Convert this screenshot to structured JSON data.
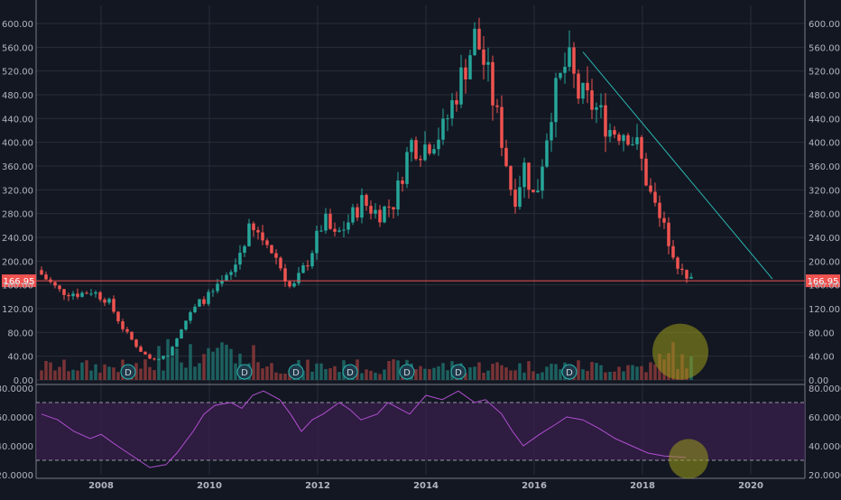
{
  "colors": {
    "background": "#131722",
    "grid": "#2a2e39",
    "up": "#26a69a",
    "down": "#ef5350",
    "up_volume": "#1f6f6a",
    "down_volume": "#8c3a3a",
    "axis_text": "#b2b5be",
    "rsi_line": "#b04fd0",
    "rsi_band": "#3a1f4f",
    "trendline": "#2ab6b0",
    "highlight_circle": "#9a9a1a",
    "price_label_bg": "#ef5350"
  },
  "chart_data": [
    {
      "type": "candlestick",
      "title": "",
      "price_axis": {
        "ticks": [
          "600.00",
          "560.00",
          "520.00",
          "480.00",
          "440.00",
          "400.00",
          "360.00",
          "320.00",
          "280.00",
          "240.00",
          "200.00",
          "160.00",
          "120.00",
          "80.00",
          "40.00",
          "0.00"
        ],
        "ylim": [
          0,
          600
        ]
      },
      "time_axis": {
        "ticks": [
          "2008",
          "2010",
          "2012",
          "2014",
          "2016",
          "2018",
          "2020"
        ],
        "xlim": [
          2006.8,
          2021.0
        ]
      },
      "last_price_label": "166.95",
      "last_price": 166.95,
      "horizontal_line": 166.95,
      "trendline": {
        "from": [
          2016.9,
          552
        ],
        "to": [
          2020.4,
          170
        ]
      },
      "dividend_markers": {
        "label": "D",
        "dates": [
          2008.5,
          2010.65,
          2011.6,
          2012.6,
          2013.65,
          2014.6,
          2016.65
        ]
      },
      "highlight": {
        "date": 2018.7,
        "value": 40,
        "label": ""
      },
      "monthly_closes": [
        {
          "date": 2006.9,
          "close": 185
        },
        {
          "date": 2007.3,
          "close": 150
        },
        {
          "date": 2007.7,
          "close": 145
        },
        {
          "date": 2007.9,
          "close": 150
        },
        {
          "date": 2008.2,
          "close": 135
        },
        {
          "date": 2008.5,
          "close": 85
        },
        {
          "date": 2008.8,
          "close": 50
        },
        {
          "date": 2009.0,
          "close": 35
        },
        {
          "date": 2009.3,
          "close": 40
        },
        {
          "date": 2009.6,
          "close": 95
        },
        {
          "date": 2009.9,
          "close": 130
        },
        {
          "date": 2010.2,
          "close": 150
        },
        {
          "date": 2010.5,
          "close": 180
        },
        {
          "date": 2010.8,
          "close": 250
        },
        {
          "date": 2011.0,
          "close": 245
        },
        {
          "date": 2011.3,
          "close": 210
        },
        {
          "date": 2011.6,
          "close": 150
        },
        {
          "date": 2011.9,
          "close": 200
        },
        {
          "date": 2012.2,
          "close": 270
        },
        {
          "date": 2012.4,
          "close": 240
        },
        {
          "date": 2012.6,
          "close": 260
        },
        {
          "date": 2012.9,
          "close": 300
        },
        {
          "date": 2013.2,
          "close": 280
        },
        {
          "date": 2013.5,
          "close": 300
        },
        {
          "date": 2013.8,
          "close": 400
        },
        {
          "date": 2014.0,
          "close": 390
        },
        {
          "date": 2014.4,
          "close": 420
        },
        {
          "date": 2014.7,
          "close": 500
        },
        {
          "date": 2015.0,
          "close": 580
        },
        {
          "date": 2015.2,
          "close": 520
        },
        {
          "date": 2015.5,
          "close": 400
        },
        {
          "date": 2015.7,
          "close": 300
        },
        {
          "date": 2015.9,
          "close": 360
        },
        {
          "date": 2016.1,
          "close": 300
        },
        {
          "date": 2016.4,
          "close": 460
        },
        {
          "date": 2016.7,
          "close": 540
        },
        {
          "date": 2016.9,
          "close": 480
        },
        {
          "date": 2017.2,
          "close": 460
        },
        {
          "date": 2017.5,
          "close": 420
        },
        {
          "date": 2017.8,
          "close": 420
        },
        {
          "date": 2018.0,
          "close": 390
        },
        {
          "date": 2018.2,
          "close": 320
        },
        {
          "date": 2018.4,
          "close": 270
        },
        {
          "date": 2018.6,
          "close": 230
        },
        {
          "date": 2018.8,
          "close": 180
        },
        {
          "date": 2018.9,
          "close": 167
        }
      ]
    },
    {
      "type": "line",
      "title": "",
      "series": [
        {
          "values": [
            62,
            58,
            50,
            45,
            48,
            40,
            35,
            30,
            25,
            27,
            35,
            50,
            62,
            68,
            70,
            66,
            75,
            78,
            72,
            62,
            50,
            58,
            62,
            70,
            65,
            58,
            62,
            70,
            66,
            62,
            75,
            72,
            78,
            70,
            72,
            62,
            50,
            40,
            48,
            55,
            60,
            58,
            52,
            45,
            40,
            35,
            33,
            32
          ]
        }
      ],
      "x": [
        2006.9,
        2007.2,
        2007.5,
        2007.8,
        2008.0,
        2008.3,
        2008.5,
        2008.7,
        2008.9,
        2009.2,
        2009.4,
        2009.7,
        2009.9,
        2010.1,
        2010.4,
        2010.6,
        2010.8,
        2011.0,
        2011.3,
        2011.5,
        2011.7,
        2011.9,
        2012.1,
        2012.4,
        2012.6,
        2012.8,
        2013.1,
        2013.3,
        2013.5,
        2013.7,
        2014.0,
        2014.3,
        2014.6,
        2014.9,
        2015.1,
        2015.4,
        2015.6,
        2015.8,
        2016.1,
        2016.4,
        2016.6,
        2016.9,
        2017.2,
        2017.5,
        2017.8,
        2018.1,
        2018.4,
        2018.8
      ],
      "price_axis": {
        "ticks": [
          "80.0000",
          "60.0000",
          "40.0000",
          "20.0000"
        ],
        "ylim": [
          20,
          80
        ]
      },
      "band": [
        30,
        70
      ],
      "highlight": {
        "date": 2018.85,
        "value": 31
      }
    }
  ]
}
